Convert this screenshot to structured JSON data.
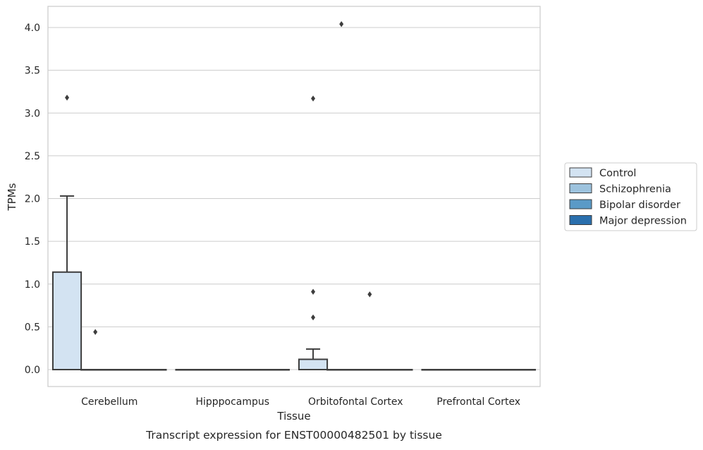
{
  "chart_data": {
    "type": "box",
    "caption": "Transcript expression for ENST00000482501 by tissue",
    "xlabel": "Tissue",
    "ylabel": "TPMs",
    "ylim": [
      -0.2,
      4.25
    ],
    "yticks": [
      0.0,
      0.5,
      1.0,
      1.5,
      2.0,
      2.5,
      3.0,
      3.5,
      4.0
    ],
    "ytick_labels": [
      "0.0",
      "0.5",
      "1.0",
      "1.5",
      "2.0",
      "2.5",
      "3.0",
      "3.5",
      "4.0"
    ],
    "grid": "horizontal",
    "legend_position": "right",
    "categories": [
      "Cerebellum",
      "Hipppocampus",
      "Orbitofontal Cortex",
      "Prefrontal Cortex"
    ],
    "series": [
      {
        "name": "Control",
        "color": "#d3e3f2",
        "boxes": [
          {
            "q1": 0.0,
            "median": 0.0,
            "q3": 1.14,
            "whisker_low": 0.0,
            "whisker_high": 2.03,
            "outliers": [
              3.18
            ]
          },
          {
            "q1": 0.0,
            "median": 0.0,
            "q3": 0.0,
            "whisker_low": 0.0,
            "whisker_high": 0.0,
            "outliers": []
          },
          {
            "q1": 0.0,
            "median": 0.0,
            "q3": 0.12,
            "whisker_low": 0.0,
            "whisker_high": 0.24,
            "outliers": [
              0.61,
              0.91,
              3.17
            ]
          },
          {
            "q1": 0.0,
            "median": 0.0,
            "q3": 0.0,
            "whisker_low": 0.0,
            "whisker_high": 0.0,
            "outliers": []
          }
        ]
      },
      {
        "name": "Schizophrenia",
        "color": "#9dc3de",
        "boxes": [
          {
            "q1": 0.0,
            "median": 0.0,
            "q3": 0.0,
            "whisker_low": 0.0,
            "whisker_high": 0.0,
            "outliers": [
              0.44
            ]
          },
          {
            "q1": 0.0,
            "median": 0.0,
            "q3": 0.0,
            "whisker_low": 0.0,
            "whisker_high": 0.0,
            "outliers": []
          },
          {
            "q1": 0.0,
            "median": 0.0,
            "q3": 0.0,
            "whisker_low": 0.0,
            "whisker_high": 0.0,
            "outliers": [
              4.04
            ]
          },
          {
            "q1": 0.0,
            "median": 0.0,
            "q3": 0.0,
            "whisker_low": 0.0,
            "whisker_high": 0.0,
            "outliers": []
          }
        ]
      },
      {
        "name": "Bipolar disorder",
        "color": "#5a9ac7",
        "boxes": [
          {
            "q1": 0.0,
            "median": 0.0,
            "q3": 0.0,
            "whisker_low": 0.0,
            "whisker_high": 0.0,
            "outliers": []
          },
          {
            "q1": 0.0,
            "median": 0.0,
            "q3": 0.0,
            "whisker_low": 0.0,
            "whisker_high": 0.0,
            "outliers": []
          },
          {
            "q1": 0.0,
            "median": 0.0,
            "q3": 0.0,
            "whisker_low": 0.0,
            "whisker_high": 0.0,
            "outliers": [
              0.88
            ]
          },
          {
            "q1": 0.0,
            "median": 0.0,
            "q3": 0.0,
            "whisker_low": 0.0,
            "whisker_high": 0.0,
            "outliers": []
          }
        ]
      },
      {
        "name": "Major depression",
        "color": "#2a6fad",
        "boxes": [
          {
            "q1": 0.0,
            "median": 0.0,
            "q3": 0.0,
            "whisker_low": 0.0,
            "whisker_high": 0.0,
            "outliers": []
          },
          {
            "q1": 0.0,
            "median": 0.0,
            "q3": 0.0,
            "whisker_low": 0.0,
            "whisker_high": 0.0,
            "outliers": []
          },
          {
            "q1": 0.0,
            "median": 0.0,
            "q3": 0.0,
            "whisker_low": 0.0,
            "whisker_high": 0.0,
            "outliers": []
          },
          {
            "q1": 0.0,
            "median": 0.0,
            "q3": 0.0,
            "whisker_low": 0.0,
            "whisker_high": 0.0,
            "outliers": []
          }
        ]
      }
    ]
  }
}
